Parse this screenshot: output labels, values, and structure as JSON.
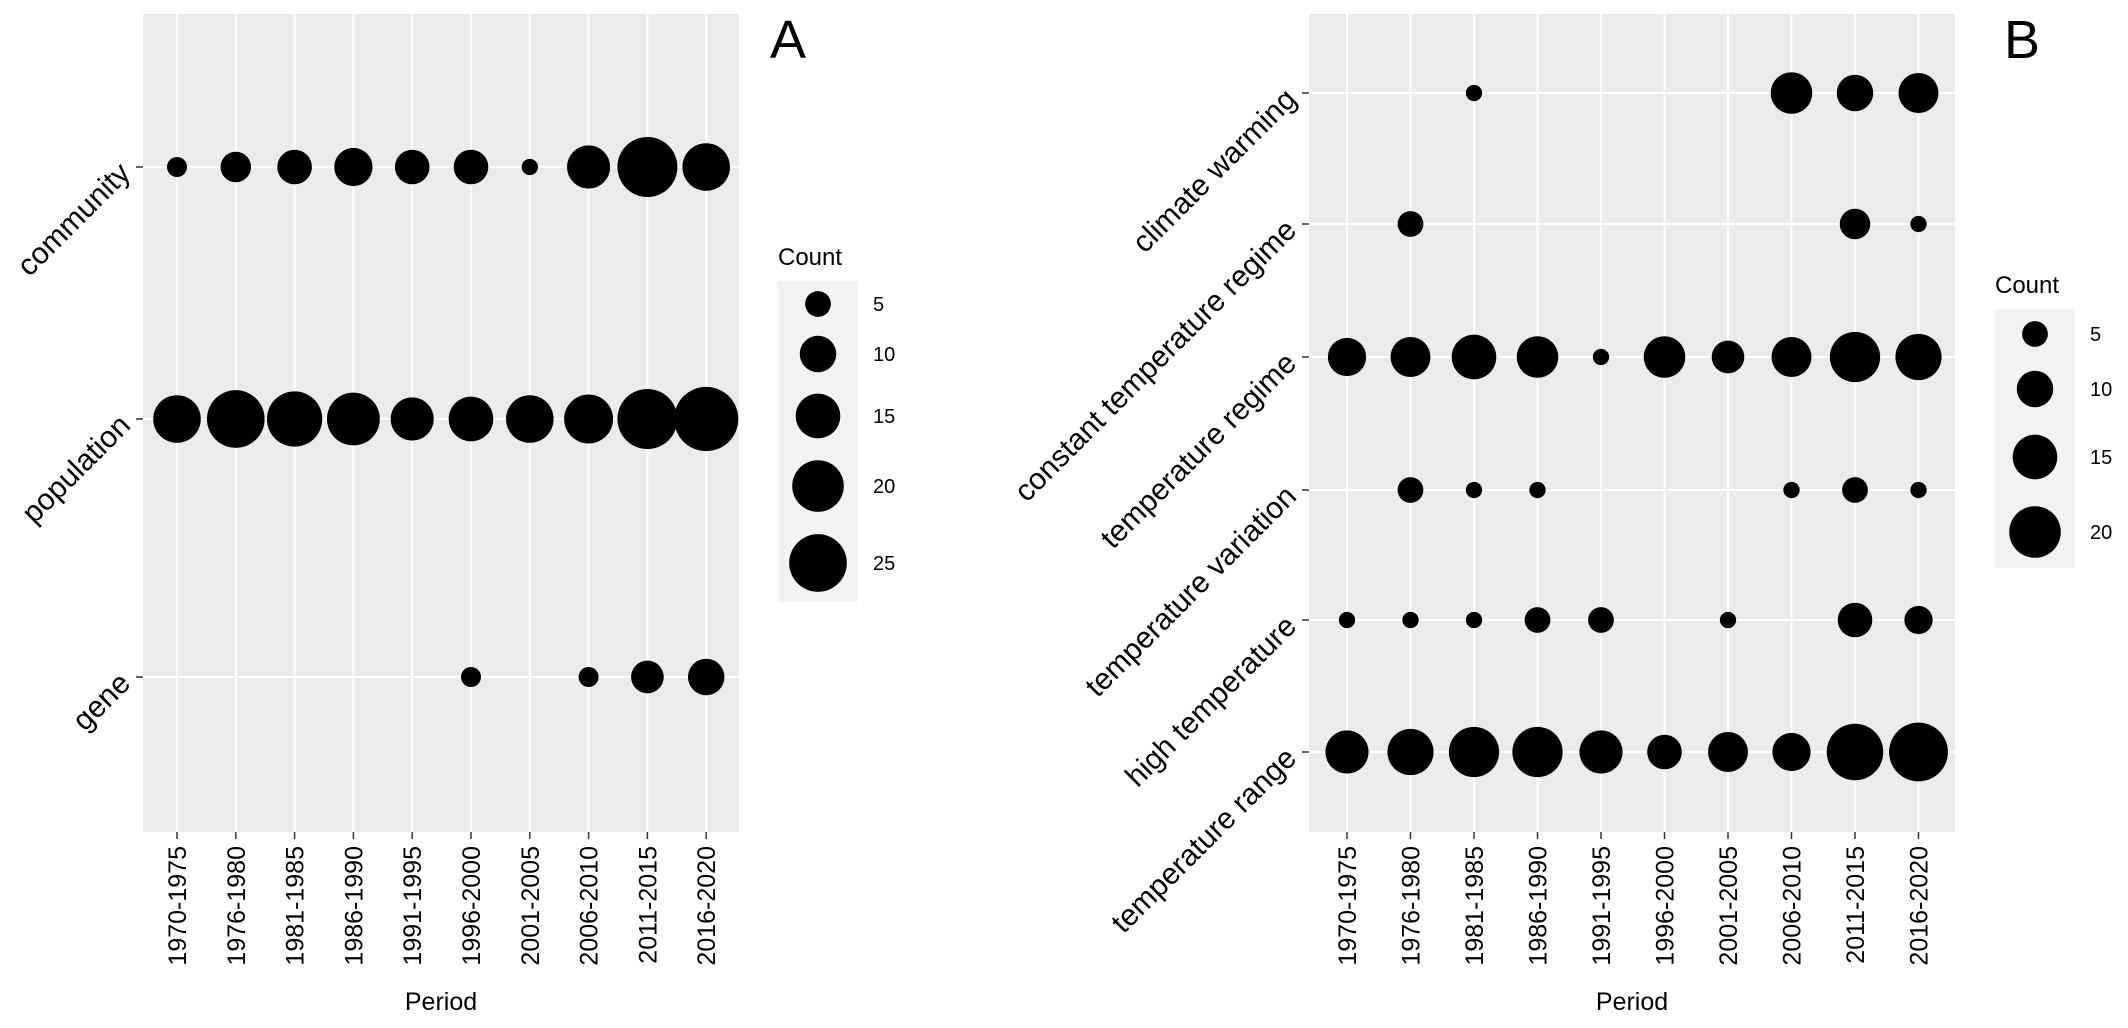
{
  "chart_data": [
    {
      "type": "scatter",
      "panel_label": "A",
      "xlabel": "Period",
      "ylabel": "",
      "categories": [
        "1970-1975",
        "1976-1980",
        "1981-1985",
        "1986-1990",
        "1991-1995",
        "1996-2000",
        "2001-2005",
        "2006-2010",
        "2011-2015",
        "2016-2020"
      ],
      "y_categories": [
        "community",
        "population",
        "gene"
      ],
      "size_legend": {
        "title": "Count",
        "values": [
          5,
          10,
          15,
          20,
          25
        ]
      },
      "series": [
        {
          "values": [
            3,
            7,
            9,
            11,
            9,
            9,
            2,
            14,
            27,
            17
          ]
        },
        {
          "values": [
            17,
            25,
            23,
            21,
            14,
            15,
            17,
            18,
            27,
            31
          ]
        },
        {
          "values": [
            null,
            null,
            null,
            null,
            null,
            3,
            null,
            3,
            8,
            10
          ]
        }
      ],
      "grid": true,
      "legend_position": "right"
    },
    {
      "type": "scatter",
      "panel_label": "B",
      "xlabel": "Period",
      "ylabel": "",
      "categories": [
        "1970-1975",
        "1976-1980",
        "1981-1985",
        "1986-1990",
        "1991-1995",
        "1996-2000",
        "2001-2005",
        "2006-2010",
        "2011-2015",
        "2016-2020"
      ],
      "y_categories": [
        "climate warming",
        "constant temperature regime",
        "temperature regime",
        "temperature variation",
        "high temperature",
        "temperature range"
      ],
      "size_legend": {
        "title": "Count",
        "values": [
          5,
          10,
          15,
          20
        ]
      },
      "series": [
        {
          "values": [
            null,
            null,
            2,
            null,
            null,
            null,
            null,
            13,
            10,
            12
          ]
        },
        {
          "values": [
            null,
            5,
            null,
            null,
            null,
            null,
            null,
            null,
            7,
            2
          ]
        },
        {
          "values": [
            11,
            12,
            15,
            13,
            2,
            13,
            8,
            12,
            19,
            16
          ]
        },
        {
          "values": [
            null,
            5,
            2,
            2,
            null,
            null,
            null,
            2,
            5,
            2
          ]
        },
        {
          "values": [
            2,
            2,
            2,
            5,
            5,
            null,
            2,
            null,
            9,
            6
          ]
        },
        {
          "values": [
            14,
            16,
            19,
            19,
            14,
            9,
            12,
            11,
            24,
            26
          ]
        }
      ],
      "grid": true,
      "legend_position": "right"
    }
  ]
}
